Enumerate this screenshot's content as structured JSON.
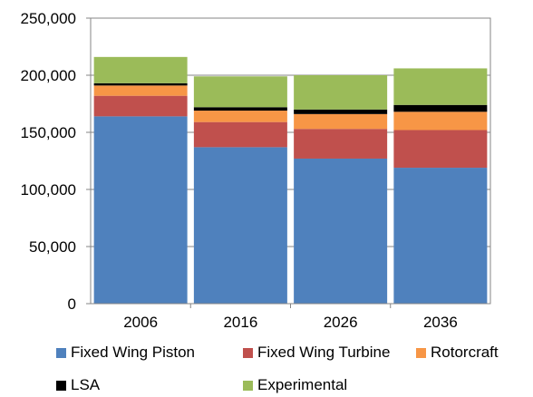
{
  "chart_data": {
    "type": "bar",
    "stacked": true,
    "categories": [
      "2006",
      "2016",
      "2026",
      "2036"
    ],
    "series": [
      {
        "name": "Fixed Wing Piston",
        "color": "#4f81bd",
        "values": [
          164000,
          137000,
          127000,
          119000
        ]
      },
      {
        "name": "Fixed Wing Turbine",
        "color": "#c0504d",
        "values": [
          18000,
          22000,
          26000,
          33000
        ]
      },
      {
        "name": "Rotorcraft",
        "color": "#f79646",
        "values": [
          9000,
          10000,
          13000,
          16000
        ]
      },
      {
        "name": "LSA",
        "color": "#000000",
        "values": [
          2000,
          3000,
          4000,
          6000
        ]
      },
      {
        "name": "Experimental",
        "color": "#9bbb59",
        "values": [
          23000,
          27000,
          30000,
          32000
        ]
      }
    ],
    "y_ticks": [
      "0",
      "50,000",
      "100,000",
      "150,000",
      "200,000",
      "250,000"
    ],
    "ylim": [
      0,
      250000
    ],
    "grid": "horizontal",
    "legend_position": "bottom",
    "title": "",
    "xlabel": "",
    "ylabel": ""
  }
}
